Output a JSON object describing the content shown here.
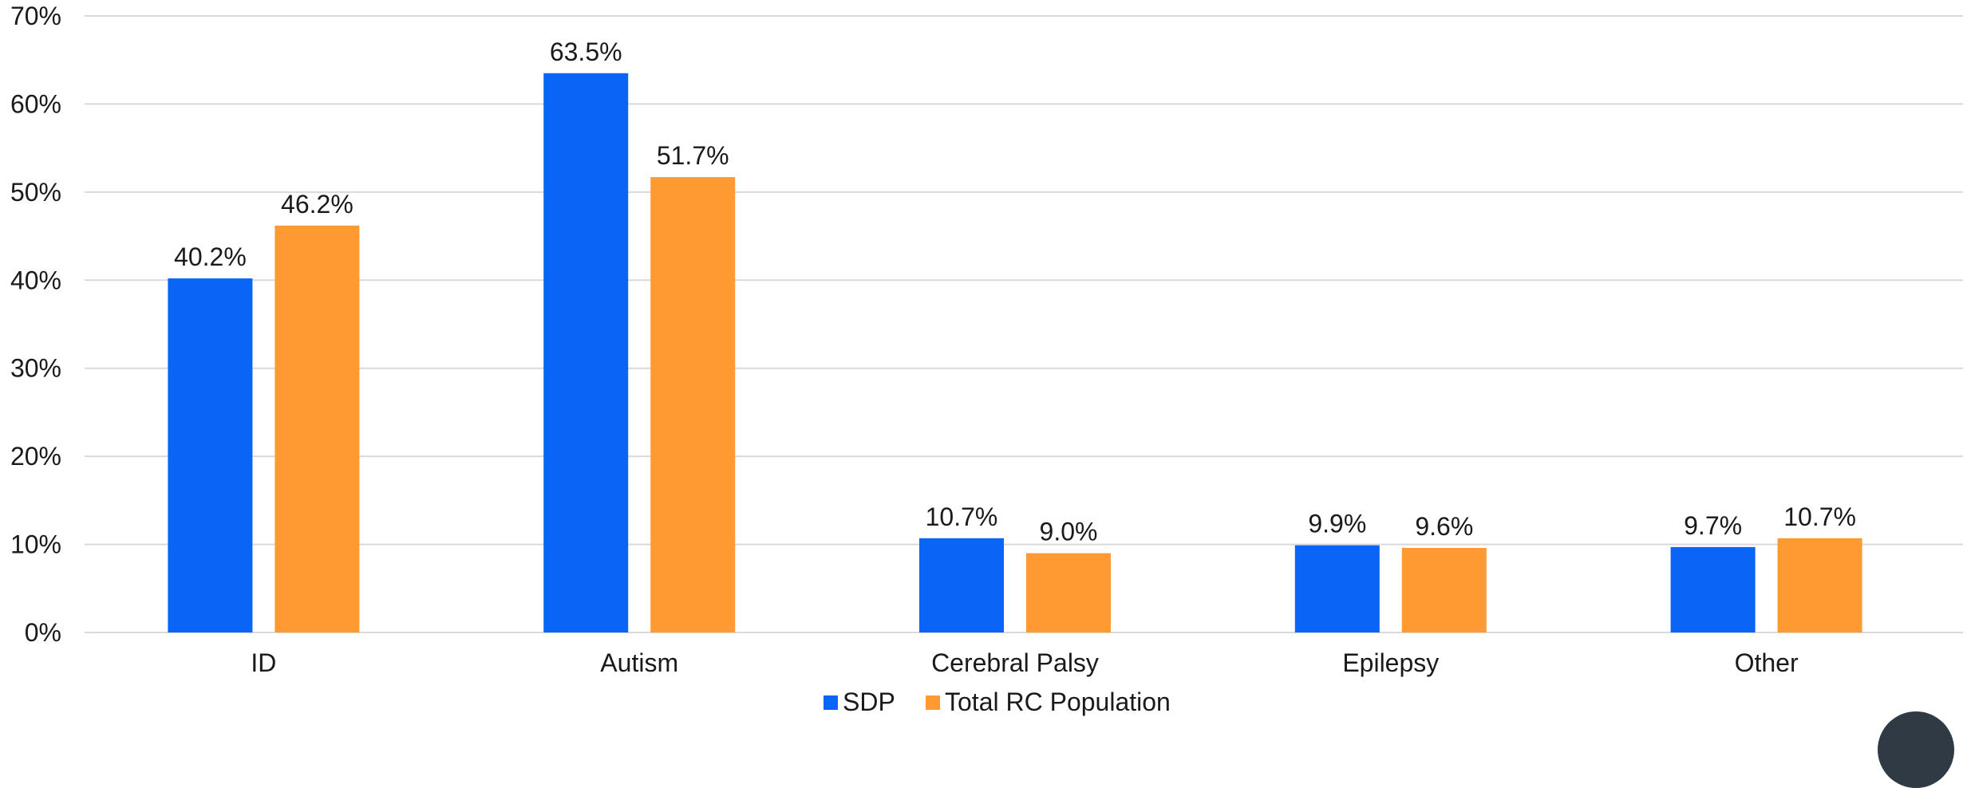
{
  "chart_data": {
    "type": "bar",
    "title": "",
    "xlabel": "",
    "ylabel": "",
    "categories": [
      "ID",
      "Autism",
      "Cerebral Palsy",
      "Epilepsy",
      "Other"
    ],
    "series": [
      {
        "name": "SDP",
        "color": "#0a64f5",
        "values": [
          40.2,
          63.5,
          10.7,
          9.9,
          9.7
        ],
        "labels": [
          "40.2%",
          "63.5%",
          "10.7%",
          "9.9%",
          "9.7%"
        ]
      },
      {
        "name": "Total RC Population",
        "color": "#ff9a33",
        "values": [
          46.2,
          51.7,
          9.0,
          9.6,
          10.7
        ],
        "labels": [
          "46.2%",
          "51.7%",
          "9.0%",
          "9.6%",
          "10.7%"
        ]
      }
    ],
    "ylim": [
      0,
      70
    ],
    "y_ticks": [
      0,
      10,
      20,
      30,
      40,
      50,
      60,
      70
    ],
    "y_tick_labels": [
      "0%",
      "10%",
      "20%",
      "30%",
      "40%",
      "50%",
      "60%",
      "70%"
    ],
    "grid": true,
    "legend_position": "bottom-center"
  }
}
